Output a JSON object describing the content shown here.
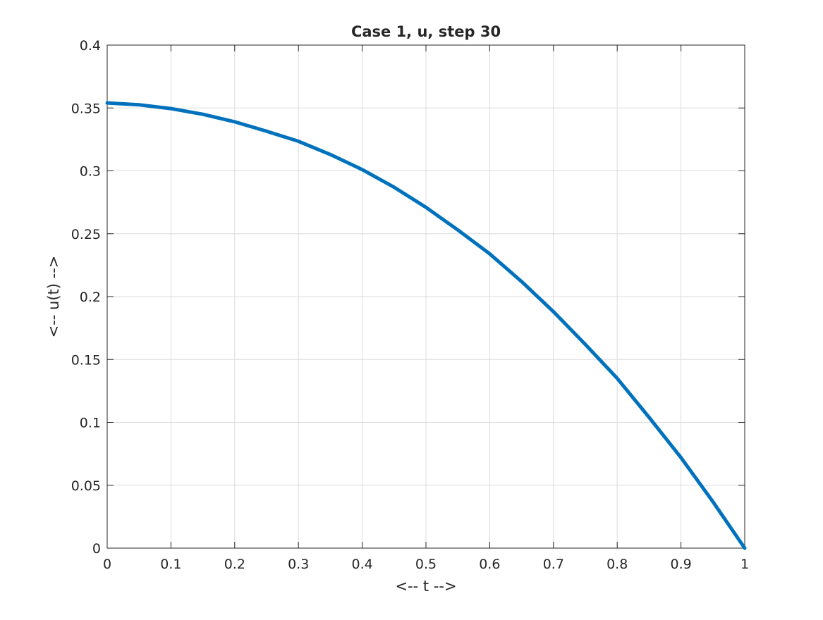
{
  "chart_data": {
    "type": "line",
    "title": "Case 1, u, step 30",
    "xlabel": "<-- t -->",
    "ylabel": "<-- u(t) -->",
    "xlim": [
      0,
      1
    ],
    "ylim": [
      0,
      0.4
    ],
    "xticks": [
      0,
      0.1,
      0.2,
      0.3,
      0.4,
      0.5,
      0.6,
      0.7,
      0.8,
      0.9,
      1
    ],
    "xtick_labels": [
      "0",
      "0.1",
      "0.2",
      "0.3",
      "0.4",
      "0.5",
      "0.6",
      "0.7",
      "0.8",
      "0.9",
      "1"
    ],
    "yticks": [
      0,
      0.05,
      0.1,
      0.15,
      0.2,
      0.25,
      0.3,
      0.35,
      0.4
    ],
    "ytick_labels": [
      "0",
      "0.05",
      "0.1",
      "0.15",
      "0.2",
      "0.25",
      "0.3",
      "0.35",
      "0.4"
    ],
    "grid": true,
    "series": [
      {
        "color": "#0072bd",
        "x": [
          0,
          0.05,
          0.1,
          0.15,
          0.2,
          0.25,
          0.3,
          0.35,
          0.4,
          0.45,
          0.5,
          0.55,
          0.6,
          0.65,
          0.7,
          0.75,
          0.8,
          0.85,
          0.9,
          0.95,
          1
        ],
        "y": [
          0.354,
          0.3525,
          0.3495,
          0.345,
          0.339,
          0.3315,
          0.3235,
          0.313,
          0.301,
          0.287,
          0.271,
          0.253,
          0.234,
          0.212,
          0.188,
          0.162,
          0.135,
          0.104,
          0.072,
          0.037,
          0
        ]
      }
    ]
  }
}
